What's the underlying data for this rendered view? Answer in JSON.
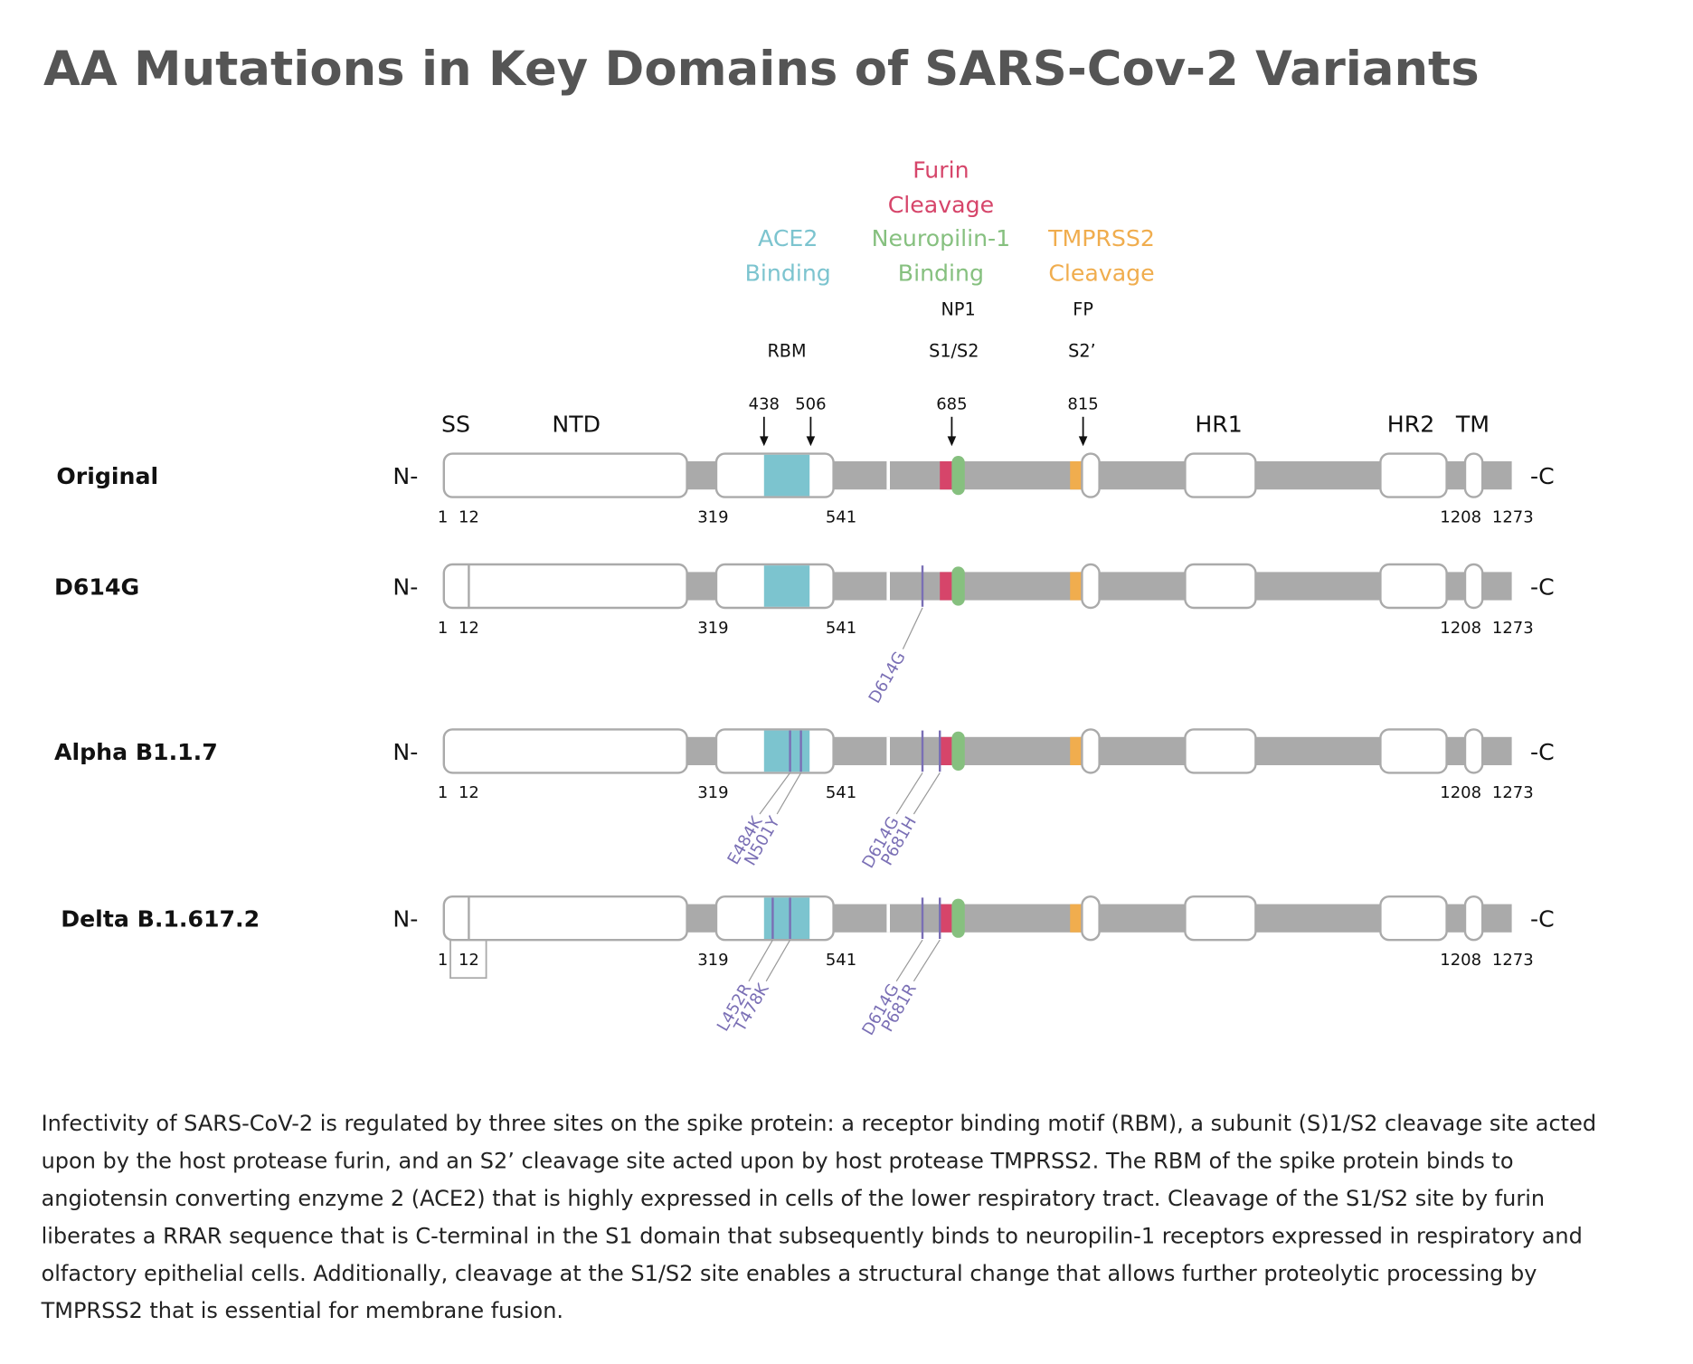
{
  "header": {
    "title": "AA Mutations in Key Domains of SARS-Cov-2 Variants"
  },
  "domains": [
    {
      "lines": [
        "ACE2",
        "Binding"
      ]
    },
    {
      "lines": [
        "Furin",
        "Cleavage"
      ]
    },
    {
      "lines": [
        "Neuropilin-1",
        "Binding"
      ]
    },
    {
      "lines": [
        "TMPRSS2",
        "Cleavage"
      ]
    }
  ],
  "sites": [
    "NP1",
    "FP",
    "RBM",
    "S1/S2",
    "S2’"
  ],
  "markers": [
    "438",
    "506",
    "685",
    "815"
  ],
  "regions": [
    "SS",
    "NTD",
    "HR1",
    "HR2",
    "TM"
  ],
  "rows": [
    {
      "name": "Original",
      "n_term": "N-",
      "c_term": "-C",
      "positions": [
        "1",
        "12",
        "319",
        "541",
        "1208",
        "1273"
      ],
      "mutations": []
    },
    {
      "name": "D614G",
      "n_term": "N-",
      "c_term": "-C",
      "positions": [
        "1",
        "12",
        "319",
        "541",
        "1208",
        "1273"
      ],
      "mutations": [
        "D614G"
      ]
    },
    {
      "name": "Alpha B1.1.7",
      "n_term": "N-",
      "c_term": "-C",
      "positions": [
        "1",
        "12",
        "319",
        "541",
        "1208",
        "1273"
      ],
      "mutations": [
        "E484K",
        "N501Y",
        "D614G",
        "P681H"
      ]
    },
    {
      "name": "Delta B.1.617.2",
      "n_term": "N-",
      "c_term": "-C",
      "positions": [
        "1",
        "12",
        "319",
        "541",
        "1208",
        "1273"
      ],
      "mutations": [
        "L452R",
        "T478K",
        "D614G",
        "P681R"
      ]
    }
  ],
  "caption": {
    "lines": [
      "Infectivity of SARS-CoV-2 is regulated by three sites on the spike protein: a receptor binding motif (RBM), a subunit (S)1/S2 cleavage site acted",
      "upon by the host protease furin, and an S2’ cleavage site acted upon by host protease TMPRSS2. The RBM of the spike protein binds to",
      "angiotensin converting enzyme 2 (ACE2) that is highly expressed in cells of the lower respiratory tract. Cleavage of the S1/S2 site by furin",
      "liberates a RRAR sequence that is C-terminal in the S1 domain that subsequently binds to neuropilin-1 receptors expressed in respiratory and",
      "olfactory epithelial cells. Additionally, cleavage at the S1/S2 site enables a structural change that allows further proteolytic processing by",
      "TMPRSS2 that is essential for membrane fusion."
    ]
  }
}
